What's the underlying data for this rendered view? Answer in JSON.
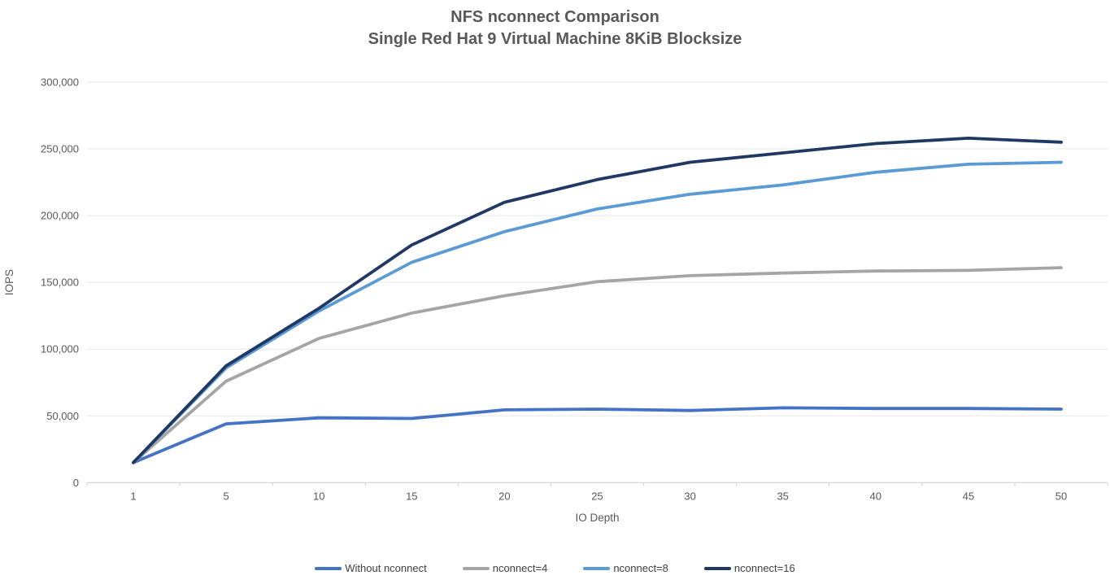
{
  "chart_data": {
    "type": "line",
    "title": "NFS nconnect Comparison",
    "subtitle": "Single Red Hat 9 Virtual Machine 8KiB Blocksize",
    "xlabel": "IO Depth",
    "ylabel": "IOPS",
    "categories": [
      1,
      5,
      10,
      15,
      20,
      25,
      30,
      35,
      40,
      45,
      50
    ],
    "series": [
      {
        "name": "Without nconnect",
        "color": "#4472C4",
        "values": [
          15000,
          44000,
          48500,
          48000,
          54500,
          55000,
          54000,
          56000,
          55500,
          55500,
          55000
        ]
      },
      {
        "name": "nconnect=4",
        "color": "#A5A5A5",
        "values": [
          15000,
          76000,
          108000,
          127000,
          140000,
          150500,
          155000,
          157000,
          158500,
          159000,
          161000
        ]
      },
      {
        "name": "nconnect=8",
        "color": "#5B9BD5",
        "values": [
          15000,
          86000,
          128500,
          165000,
          188000,
          205000,
          216000,
          223000,
          232500,
          238500,
          240000
        ]
      },
      {
        "name": "nconnect=16",
        "color": "#1F3864",
        "values": [
          15000,
          87500,
          130500,
          178000,
          210000,
          227000,
          240000,
          247000,
          254000,
          258000,
          255000
        ]
      }
    ],
    "ylim": [
      0,
      300000
    ],
    "ytick_step": 50000,
    "ytick_labels": [
      "0",
      "50,000",
      "100,000",
      "150,000",
      "200,000",
      "250,000",
      "300,000"
    ],
    "grid": true,
    "legend_position": "bottom",
    "colors": {
      "text": "#595959",
      "legend_text": "#404040",
      "gridline": "#E7E7E7",
      "axis": "#D6D6D6"
    }
  }
}
